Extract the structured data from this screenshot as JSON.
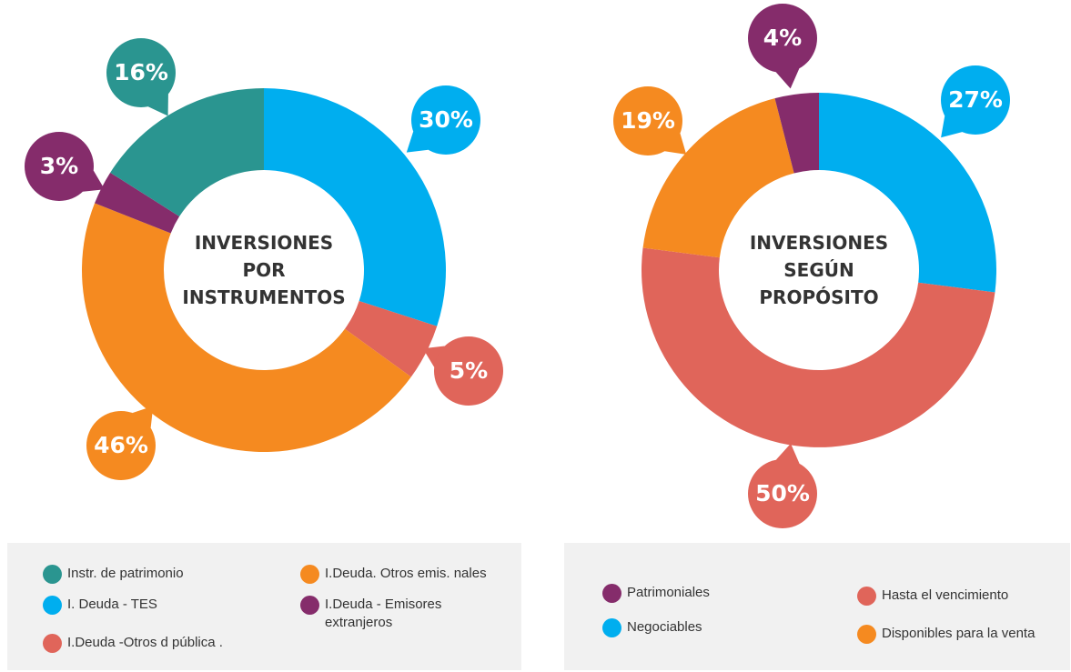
{
  "chart_data": [
    {
      "type": "donut",
      "title": "INVERSIONES POR INSTRUMENTOS",
      "categories": [
        "I. Deuda - TES",
        "I.Deuda -Otros d pública .",
        "I.Deuda. Otros emis. nales",
        "I.Deuda - Emisores extranjeros",
        "Instr. de patrimonio"
      ],
      "values": [
        30,
        5,
        46,
        3,
        16
      ],
      "value_labels": [
        "30%",
        "5%",
        "46%",
        "3%",
        "16%"
      ],
      "colors": [
        "#00aeef",
        "#e0655a",
        "#f58a20",
        "#852c6b",
        "#2a9590"
      ]
    },
    {
      "type": "donut",
      "title": "INVERSIONES SEGÚN PROPÓSITO",
      "categories": [
        "Negociables",
        "Hasta el vencimiento",
        "Disponibles para la venta",
        "Patrimoniales"
      ],
      "values": [
        27,
        50,
        19,
        4
      ],
      "value_labels": [
        "27%",
        "50%",
        "19%",
        "4%"
      ],
      "colors": [
        "#00aeef",
        "#e0655a",
        "#f58a20",
        "#852c6b"
      ]
    }
  ]
}
